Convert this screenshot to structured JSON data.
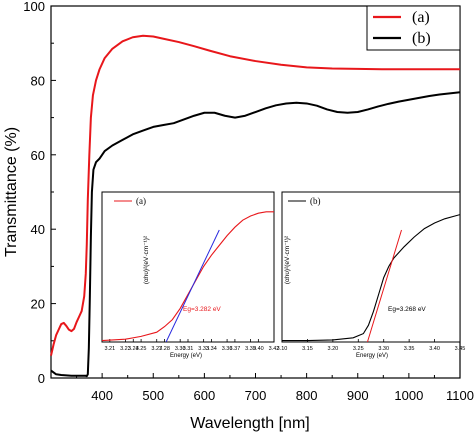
{
  "chart_data": [
    {
      "type": "line",
      "xlabel": "Wavelength [nm]",
      "ylabel": "Transmittance (%)",
      "xlim": [
        300,
        1100
      ],
      "ylim": [
        0,
        100
      ],
      "xticks": [
        "400",
        "500",
        "600",
        "700",
        "800",
        "900",
        "1000",
        "1100"
      ],
      "yticks": [
        "0",
        "20",
        "40",
        "60",
        "80",
        "100"
      ],
      "legend": {
        "position": "top-right",
        "entries": [
          "(a)",
          "(b)"
        ]
      },
      "series": [
        {
          "name": "(a)",
          "color": "#e8171b",
          "points": [
            [
              300,
              6
            ],
            [
              305,
              9
            ],
            [
              310,
              11.5
            ],
            [
              315,
              13
            ],
            [
              320,
              14.5
            ],
            [
              325,
              14.8
            ],
            [
              330,
              14
            ],
            [
              335,
              13
            ],
            [
              340,
              12.6
            ],
            [
              345,
              13.2
            ],
            [
              350,
              15
            ],
            [
              355,
              16.5
            ],
            [
              360,
              18
            ],
            [
              365,
              22
            ],
            [
              368,
              28
            ],
            [
              370,
              36
            ],
            [
              372,
              48
            ],
            [
              375,
              60
            ],
            [
              378,
              70
            ],
            [
              382,
              76
            ],
            [
              388,
              80
            ],
            [
              395,
              83
            ],
            [
              405,
              86
            ],
            [
              420,
              88.5
            ],
            [
              440,
              90.5
            ],
            [
              460,
              91.6
            ],
            [
              480,
              92
            ],
            [
              500,
              91.8
            ],
            [
              520,
              91.2
            ],
            [
              550,
              90.3
            ],
            [
              580,
              89.2
            ],
            [
              610,
              88
            ],
            [
              650,
              86.5
            ],
            [
              700,
              85.2
            ],
            [
              750,
              84.2
            ],
            [
              800,
              83.5
            ],
            [
              850,
              83.2
            ],
            [
              900,
              83.1
            ],
            [
              950,
              83
            ],
            [
              1000,
              83
            ],
            [
              1050,
              83
            ],
            [
              1100,
              83
            ]
          ]
        },
        {
          "name": "(b)",
          "color": "#000000",
          "points": [
            [
              300,
              2
            ],
            [
              310,
              1
            ],
            [
              320,
              0.8
            ],
            [
              330,
              0.7
            ],
            [
              340,
              0.6
            ],
            [
              350,
              0.6
            ],
            [
              360,
              0.6
            ],
            [
              368,
              0.6
            ],
            [
              370,
              0.5
            ],
            [
              372,
              1
            ],
            [
              374,
              8
            ],
            [
              376,
              22
            ],
            [
              378,
              38
            ],
            [
              380,
              50
            ],
            [
              383,
              56
            ],
            [
              388,
              58
            ],
            [
              395,
              59
            ],
            [
              405,
              61
            ],
            [
              420,
              62.5
            ],
            [
              440,
              64
            ],
            [
              460,
              65.5
            ],
            [
              480,
              66.5
            ],
            [
              500,
              67.5
            ],
            [
              520,
              68
            ],
            [
              540,
              68.5
            ],
            [
              560,
              69.5
            ],
            [
              580,
              70.5
            ],
            [
              600,
              71.3
            ],
            [
              620,
              71.3
            ],
            [
              640,
              70.5
            ],
            [
              660,
              70
            ],
            [
              680,
              70.5
            ],
            [
              700,
              71.5
            ],
            [
              720,
              72.5
            ],
            [
              740,
              73.3
            ],
            [
              760,
              73.8
            ],
            [
              780,
              74
            ],
            [
              800,
              73.8
            ],
            [
              820,
              73.2
            ],
            [
              840,
              72.2
            ],
            [
              860,
              71.5
            ],
            [
              880,
              71.3
            ],
            [
              900,
              71.5
            ],
            [
              920,
              72.2
            ],
            [
              940,
              73
            ],
            [
              960,
              73.7
            ],
            [
              980,
              74.3
            ],
            [
              1000,
              74.8
            ],
            [
              1020,
              75.3
            ],
            [
              1040,
              75.8
            ],
            [
              1060,
              76.2
            ],
            [
              1080,
              76.5
            ],
            [
              1100,
              76.8
            ]
          ]
        }
      ]
    },
    {
      "type": "line",
      "legend": {
        "position": "top-left",
        "entries": [
          "(a)"
        ]
      },
      "ylabel": "(αhυ)²(eV·cm⁻¹)²",
      "xlabel": "Energy (eV)",
      "xlim": [
        3.2,
        3.42
      ],
      "xticks": [
        "3.21",
        "3.23",
        "3.24",
        "3.25",
        "3.27",
        "3.28",
        "3.30",
        "3.31",
        "3.33",
        "3.34",
        "3.36",
        "3.37",
        "3.39",
        "3.40",
        "3.42"
      ],
      "annotation": "Eg=3.282 eV",
      "series": [
        {
          "name": "(a)",
          "color": "#e8171b",
          "points": [
            [
              3.2,
              0.01
            ],
            [
              3.23,
              0.02
            ],
            [
              3.25,
              0.04
            ],
            [
              3.27,
              0.07
            ],
            [
              3.28,
              0.11
            ],
            [
              3.29,
              0.16
            ],
            [
              3.3,
              0.24
            ],
            [
              3.31,
              0.34
            ],
            [
              3.32,
              0.44
            ],
            [
              3.33,
              0.54
            ],
            [
              3.34,
              0.62
            ],
            [
              3.35,
              0.69
            ],
            [
              3.36,
              0.76
            ],
            [
              3.37,
              0.82
            ],
            [
              3.38,
              0.87
            ],
            [
              3.39,
              0.9
            ],
            [
              3.4,
              0.92
            ],
            [
              3.41,
              0.93
            ],
            [
              3.42,
              0.93
            ]
          ]
        },
        {
          "name": "fit",
          "color": "#2a2adf",
          "points": [
            [
              3.272,
              -0.1
            ],
            [
              3.282,
              0.0
            ],
            [
              3.35,
              0.8
            ]
          ]
        }
      ]
    },
    {
      "type": "line",
      "legend": {
        "position": "top-left",
        "entries": [
          "(b)"
        ]
      },
      "ylabel": "(αhυ)²(eV·cm⁻¹)²",
      "xlabel": "Energy (eV)",
      "xlim": [
        3.1,
        3.45
      ],
      "xticks": [
        "3.10",
        "3.15",
        "3.20",
        "3.25",
        "3.30",
        "3.35",
        "3.40",
        "3.45"
      ],
      "annotation": "Eg=3.268 eV",
      "series": [
        {
          "name": "(b)",
          "color": "#000000",
          "points": [
            [
              3.1,
              0.01
            ],
            [
              3.15,
              0.01
            ],
            [
              3.2,
              0.015
            ],
            [
              3.24,
              0.03
            ],
            [
              3.26,
              0.06
            ],
            [
              3.27,
              0.12
            ],
            [
              3.28,
              0.22
            ],
            [
              3.29,
              0.34
            ],
            [
              3.3,
              0.46
            ],
            [
              3.31,
              0.54
            ],
            [
              3.32,
              0.6
            ],
            [
              3.34,
              0.68
            ],
            [
              3.36,
              0.75
            ],
            [
              3.38,
              0.81
            ],
            [
              3.4,
              0.85
            ],
            [
              3.42,
              0.88
            ],
            [
              3.45,
              0.91
            ]
          ]
        },
        {
          "name": "fit",
          "color": "#e8171b",
          "points": [
            [
              3.255,
              -0.1
            ],
            [
              3.268,
              0.0
            ],
            [
              3.335,
              0.8
            ]
          ]
        }
      ]
    }
  ]
}
